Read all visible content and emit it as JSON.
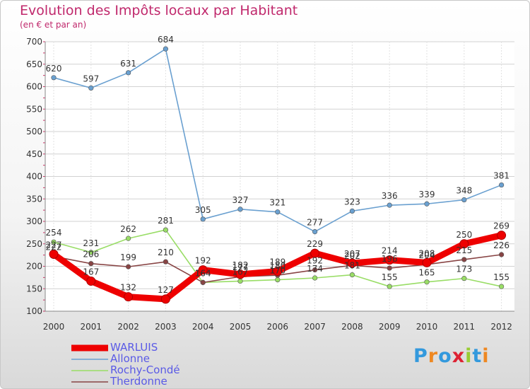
{
  "chart_data": {
    "type": "line",
    "title": "Evolution des Impôts locaux par Habitant",
    "subtitle": "(en € et par an)",
    "x": [
      "2000",
      "2001",
      "2002",
      "2003",
      "2004",
      "2005",
      "2006",
      "2007",
      "2008",
      "2009",
      "2010",
      "2011",
      "2012"
    ],
    "ylim": [
      100,
      700
    ],
    "yticks": [
      100,
      150,
      200,
      250,
      300,
      350,
      400,
      450,
      500,
      550,
      600,
      650,
      700
    ],
    "grid": true,
    "legend_position": "bottom-left",
    "series": [
      {
        "name": "WARLUIS",
        "color": "#ee0000",
        "emphasis": true,
        "values": [
          227,
          167,
          132,
          127,
          192,
          182,
          189,
          229,
          207,
          214,
          208,
          250,
          269
        ]
      },
      {
        "name": "Allonne",
        "color": "#6aa0d0",
        "values": [
          620,
          597,
          631,
          684,
          305,
          327,
          321,
          277,
          323,
          336,
          339,
          348,
          381
        ]
      },
      {
        "name": "Rochy-Condé",
        "color": "#99dd66",
        "values": [
          254,
          231,
          262,
          281,
          164,
          167,
          170,
          174,
          181,
          155,
          165,
          173,
          155
        ]
      },
      {
        "name": "Therdonne",
        "color": "#884444",
        "values": [
          222,
          206,
          199,
          210,
          164,
          177,
          180,
          192,
          202,
          196,
          204,
          215,
          226
        ]
      }
    ]
  },
  "logo": {
    "text": "Proxiti",
    "colors": [
      "#3399dd",
      "#ee8822",
      "#3399dd",
      "#dd2233",
      "#99cc33",
      "#3399dd",
      "#ee8822"
    ]
  }
}
